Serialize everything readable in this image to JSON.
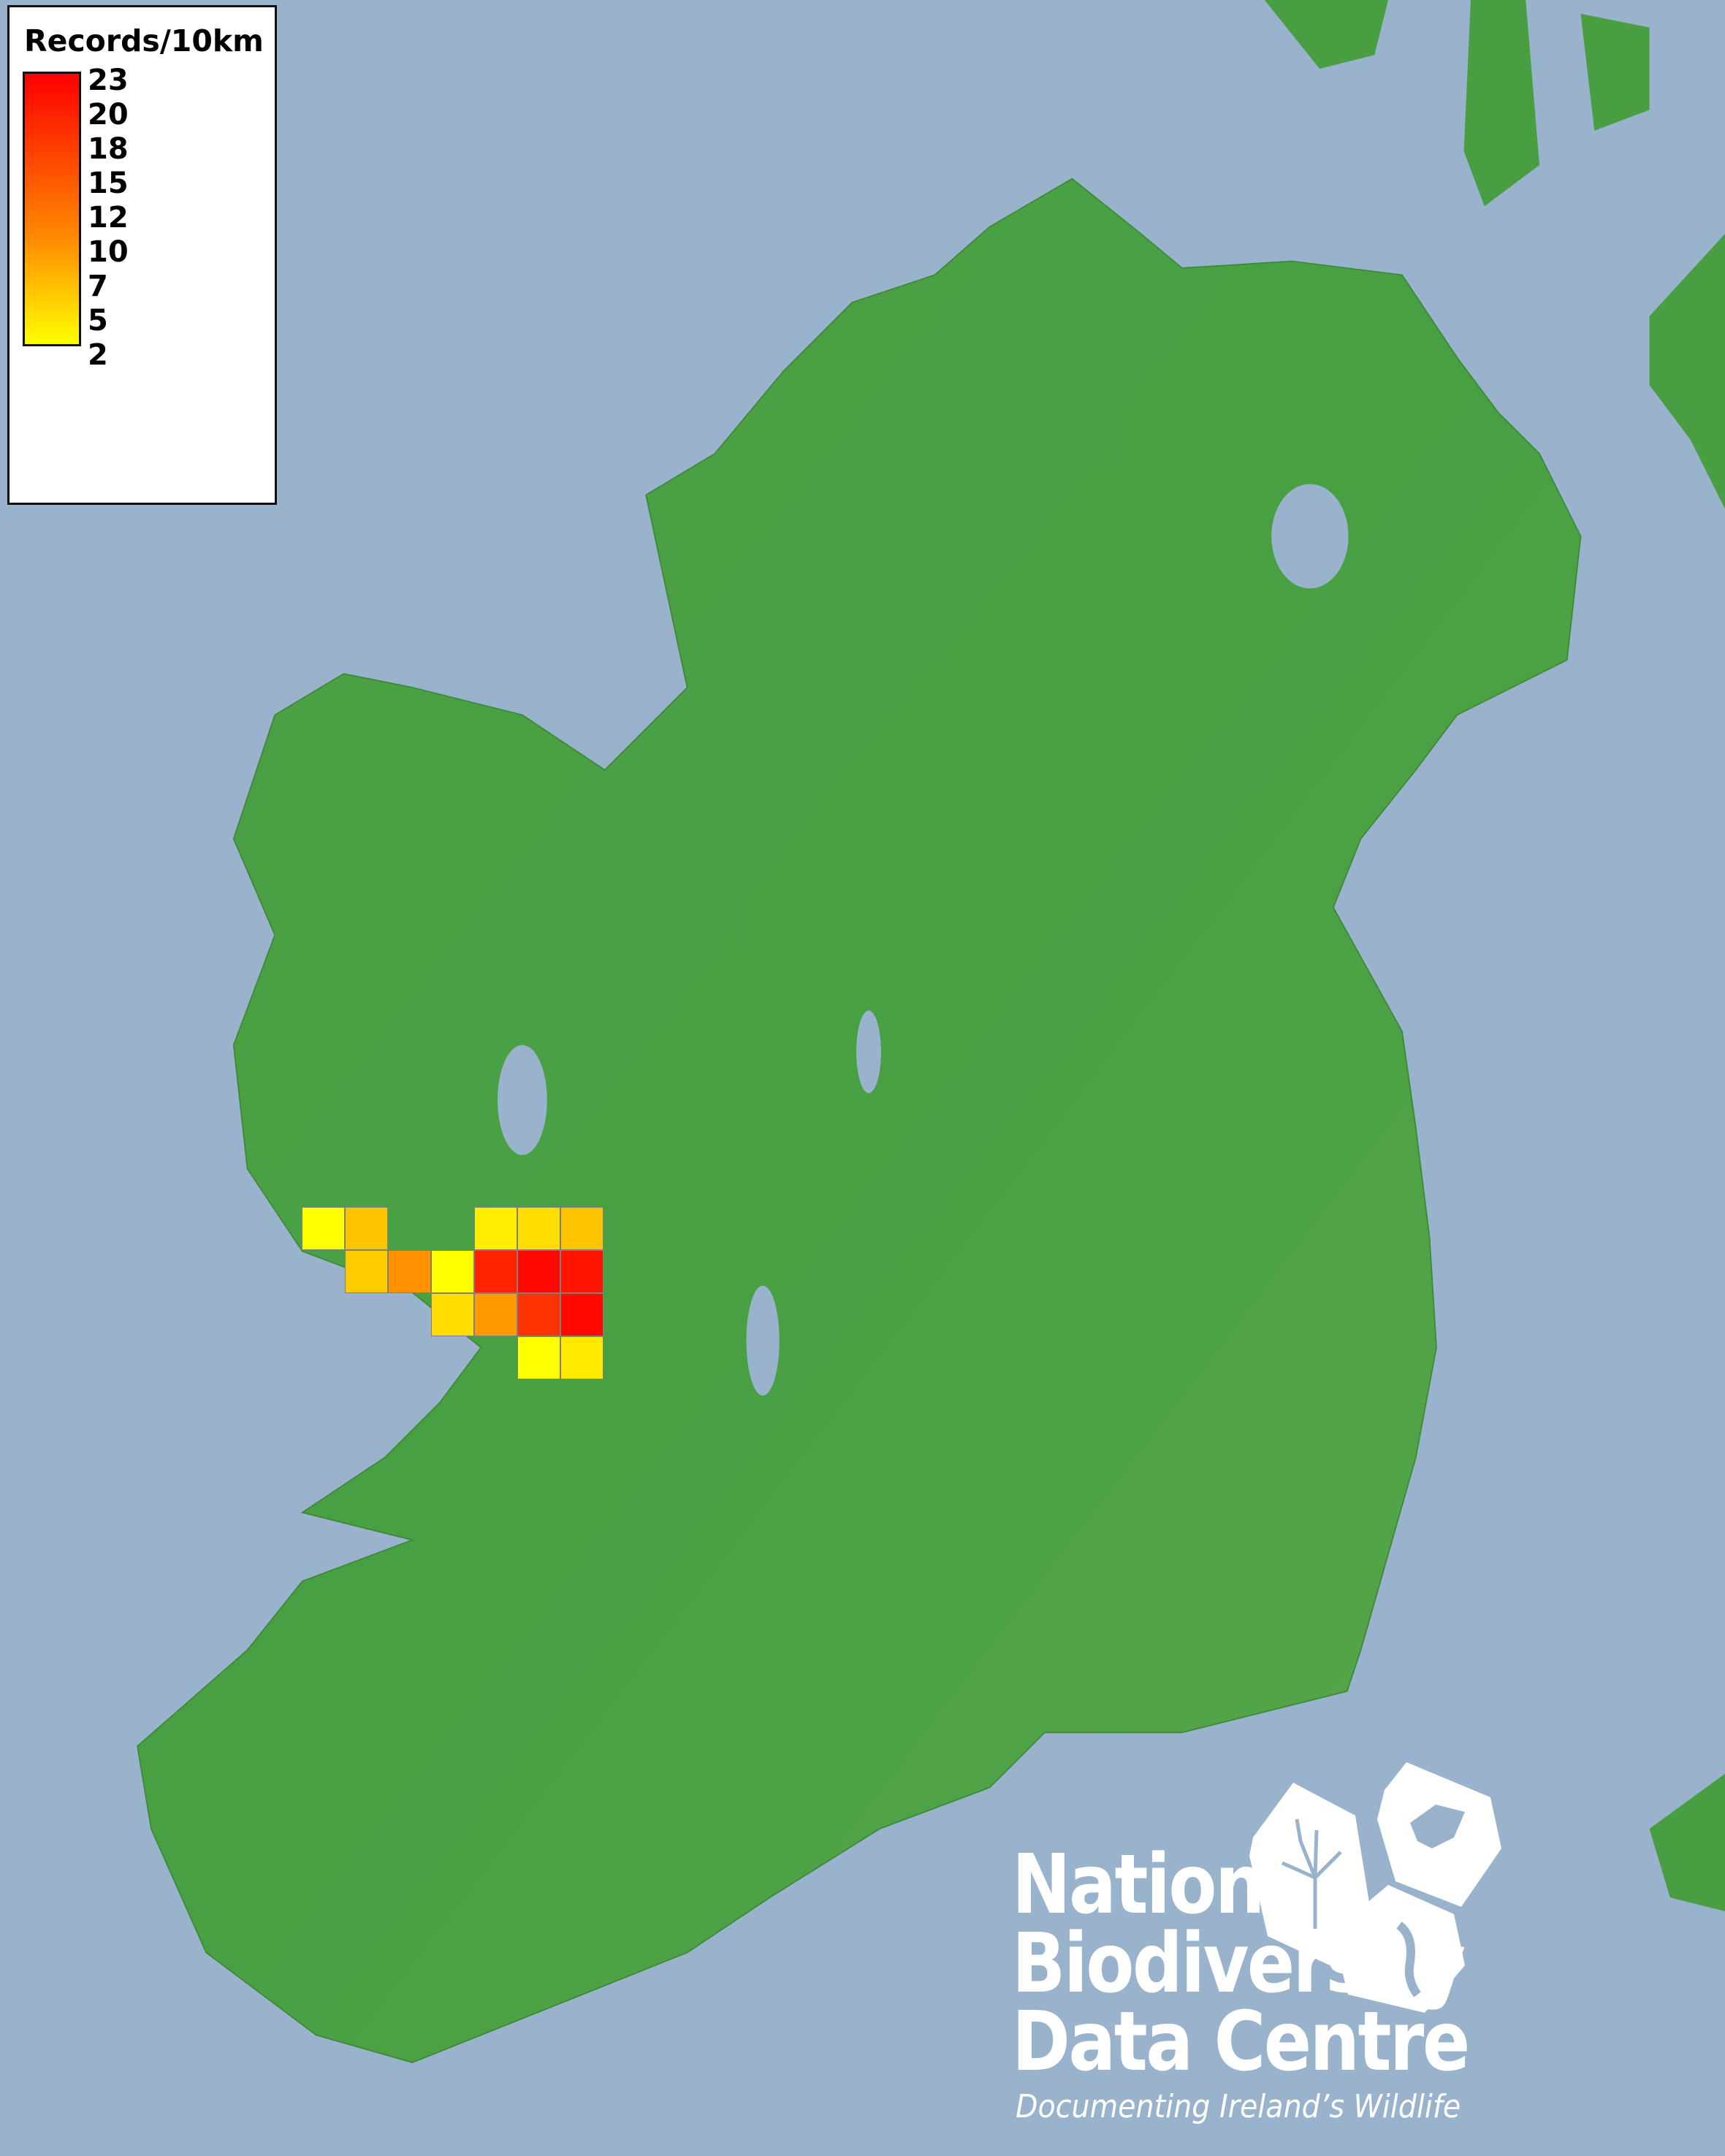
{
  "legend": {
    "title": "Records/10km",
    "ticks": [
      "23",
      "20",
      "18",
      "15",
      "12",
      "10",
      "7",
      "5",
      "2"
    ],
    "min": 2,
    "max": 23,
    "color_low": "#FFFF00",
    "color_high": "#FF0000"
  },
  "map": {
    "sea_color": "#99B3CC",
    "land_color": "#4A9E42",
    "grid_cells": [
      {
        "row": 0,
        "col": 0,
        "value": 2,
        "color": "#FFFF00"
      },
      {
        "row": 0,
        "col": 1,
        "value": 7,
        "color": "#FFC400"
      },
      {
        "row": 0,
        "col": 4,
        "value": 3,
        "color": "#FFEE00"
      },
      {
        "row": 0,
        "col": 5,
        "value": 5,
        "color": "#FFDD00"
      },
      {
        "row": 0,
        "col": 6,
        "value": 7,
        "color": "#FFC400"
      },
      {
        "row": 1,
        "col": 1,
        "value": 6,
        "color": "#FFCC00"
      },
      {
        "row": 1,
        "col": 2,
        "value": 11,
        "color": "#FF9100"
      },
      {
        "row": 1,
        "col": 3,
        "value": 2,
        "color": "#FFFF00"
      },
      {
        "row": 1,
        "col": 4,
        "value": 20,
        "color": "#FF2200"
      },
      {
        "row": 1,
        "col": 5,
        "value": 22,
        "color": "#FF0800"
      },
      {
        "row": 1,
        "col": 6,
        "value": 21,
        "color": "#FF1400"
      },
      {
        "row": 2,
        "col": 3,
        "value": 5,
        "color": "#FFDD00"
      },
      {
        "row": 2,
        "col": 4,
        "value": 10,
        "color": "#FF9900"
      },
      {
        "row": 2,
        "col": 5,
        "value": 18,
        "color": "#FF3300"
      },
      {
        "row": 2,
        "col": 6,
        "value": 22,
        "color": "#FF0800"
      },
      {
        "row": 3,
        "col": 5,
        "value": 2,
        "color": "#FFFF00"
      },
      {
        "row": 3,
        "col": 6,
        "value": 4,
        "color": "#FFEA00"
      }
    ]
  },
  "logo": {
    "line1": "National",
    "line2": "Biodiversity",
    "line3": "Data Centre",
    "tagline": "Documenting Ireland’s Wildlife"
  }
}
